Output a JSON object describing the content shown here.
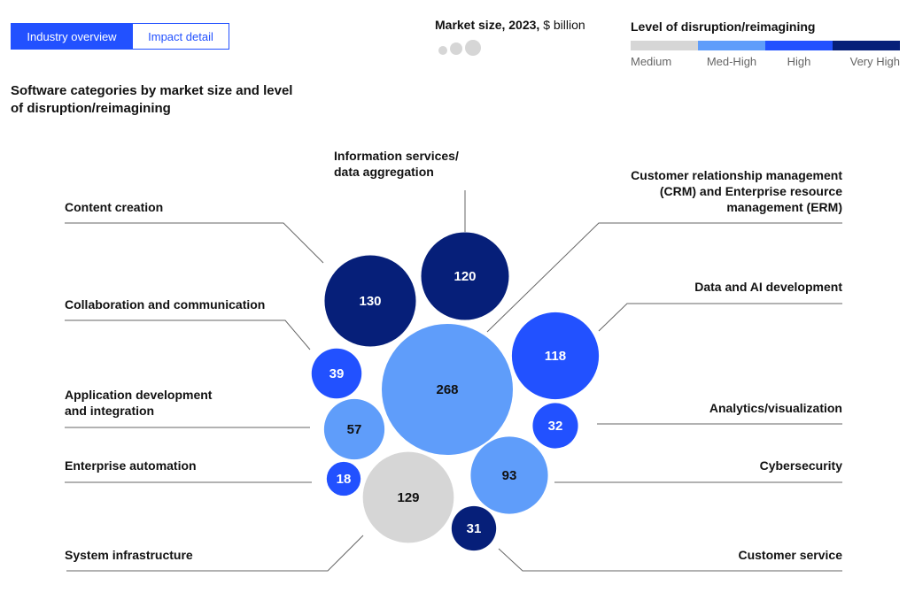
{
  "tabs": [
    "Industry overview",
    "Impact detail"
  ],
  "chart_data": {
    "type": "bubble",
    "title": "Software categories by market size and level of disruption/reimagining",
    "size_legend": {
      "title": "Market size, 2023,",
      "unit": "$ billion"
    },
    "color_legend": {
      "title": "Level of disruption/reimagining",
      "levels": [
        {
          "name": "Medium",
          "color": "#d6d6d6"
        },
        {
          "name": "Med-High",
          "color": "#5f9dfa"
        },
        {
          "name": "High",
          "color": "#2251ff"
        },
        {
          "name": "Very High",
          "color": "#061f79"
        }
      ]
    },
    "categories": [
      "Content creation",
      "Information services/ data aggregation",
      "Customer relationship management (CRM) and Enterprise resource management (ERM)",
      "Data and AI development",
      "Collaboration and communication",
      "Application development and integration",
      "Analytics/visualization",
      "Enterprise automation",
      "Cybersecurity",
      "System infrastructure",
      "Customer service"
    ],
    "values": [
      130,
      120,
      268,
      118,
      39,
      57,
      32,
      18,
      93,
      129,
      31
    ],
    "levels": [
      3,
      3,
      1,
      2,
      2,
      1,
      2,
      2,
      1,
      0,
      3
    ]
  }
}
